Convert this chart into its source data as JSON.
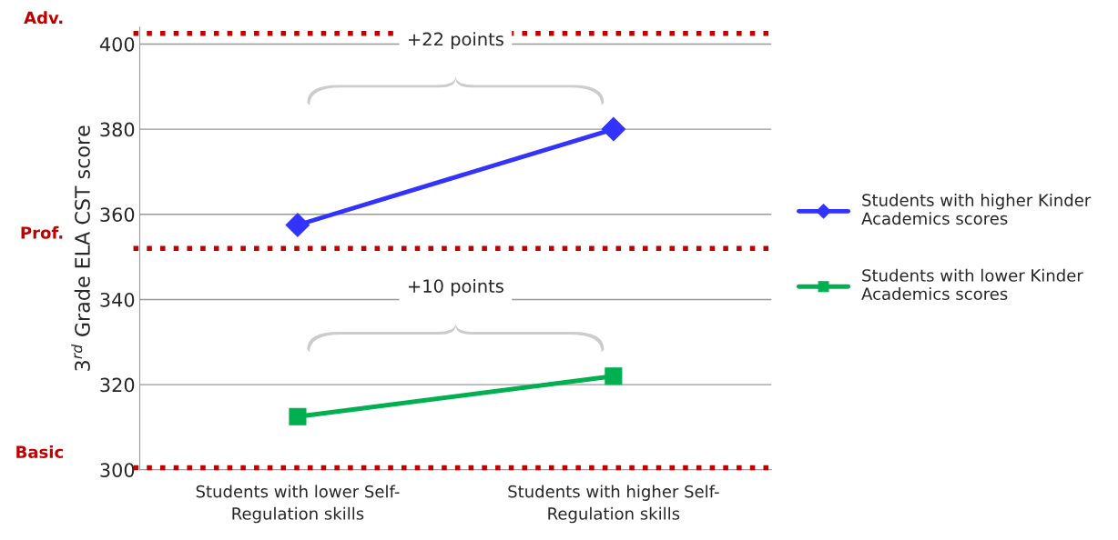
{
  "chart_data": {
    "type": "line",
    "categories": [
      "Students with lower Self-\nRegulation skills",
      "Students with higher Self-\nRegulation skills"
    ],
    "ylabel": "3$^{rd}$ Grade ELA CST score",
    "series": [
      {
        "name": "Students with higher Kinder\nAcademics scores",
        "color": "#3333ff",
        "marker": "diamond",
        "values": [
          357.5,
          380
        ]
      },
      {
        "name": "Students with lower Kinder\nAcademics scores",
        "color": "#00b050",
        "marker": "square",
        "values": [
          312.5,
          322
        ]
      }
    ],
    "ylim": [
      300,
      404
    ],
    "yticks": [
      300,
      320,
      340,
      360,
      380,
      400
    ],
    "grid": "y",
    "legend": "right",
    "line_style": "solid",
    "ref_lines": [
      {
        "axis": "y",
        "value": 402.5,
        "label": "Adv.",
        "color": "#c00000",
        "line_style": "dotted"
      },
      {
        "axis": "y",
        "value": 352,
        "label": "Prof.",
        "color": "#c00000",
        "line_style": "dotted"
      },
      {
        "axis": "y",
        "value": 300.5,
        "label": "Basic",
        "color": "#c00000",
        "line_style": "dotted"
      }
    ],
    "annotations": [
      "+22 points",
      "+10 points"
    ]
  }
}
